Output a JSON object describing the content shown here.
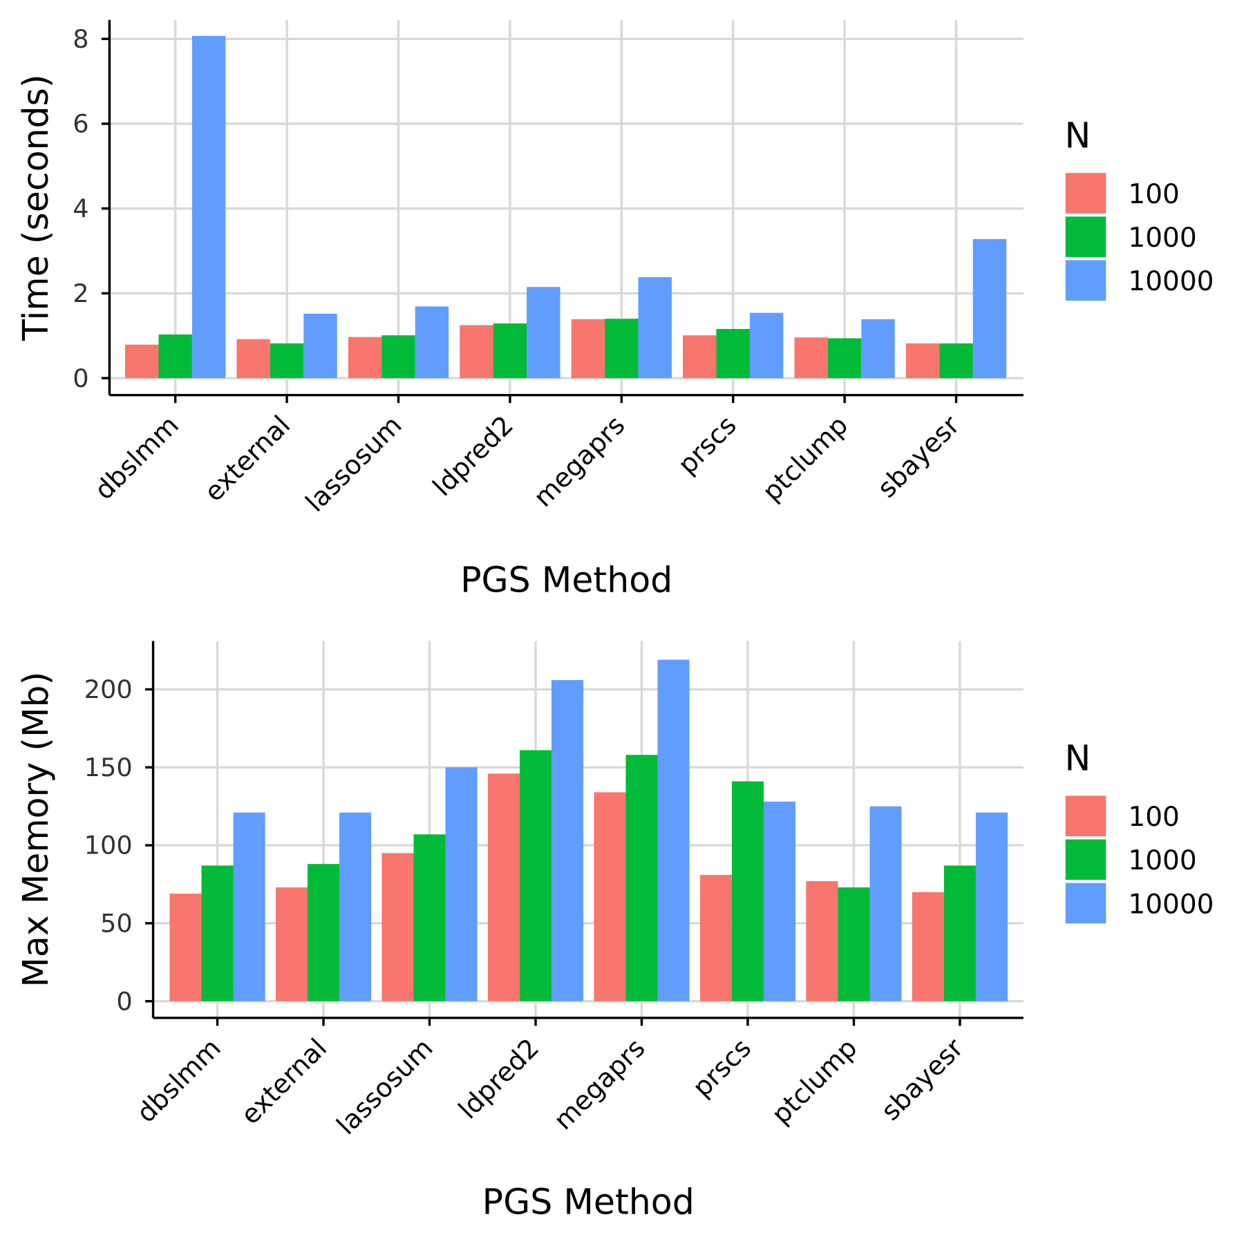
{
  "chart_data": [
    {
      "type": "bar",
      "categories": [
        "dbslmm",
        "external",
        "lassosum",
        "ldpred2",
        "megaprs",
        "prscs",
        "ptclump",
        "sbayesr"
      ],
      "series": [
        {
          "name": "100",
          "values": [
            0.79,
            0.92,
            0.97,
            1.25,
            1.39,
            1.01,
            0.96,
            0.82
          ]
        },
        {
          "name": "1000",
          "values": [
            1.03,
            0.82,
            1.01,
            1.29,
            1.4,
            1.16,
            0.94,
            0.82
          ]
        },
        {
          "name": "10000",
          "values": [
            8.07,
            1.52,
            1.69,
            2.15,
            2.38,
            1.54,
            1.39,
            3.28
          ]
        }
      ],
      "xlabel": "PGS Method",
      "ylabel": "Time (seconds)",
      "yticks": [
        0,
        2,
        4,
        6,
        8
      ],
      "ylim": [
        -0.4,
        8.45
      ],
      "grid": true,
      "legend_title": "N",
      "legend_position": "right"
    },
    {
      "type": "bar",
      "categories": [
        "dbslmm",
        "external",
        "lassosum",
        "ldpred2",
        "megaprs",
        "prscs",
        "ptclump",
        "sbayesr"
      ],
      "series": [
        {
          "name": "100",
          "values": [
            69,
            73,
            95,
            146,
            134,
            81,
            77,
            70
          ]
        },
        {
          "name": "1000",
          "values": [
            87,
            88,
            107,
            161,
            158,
            141,
            73,
            87
          ]
        },
        {
          "name": "10000",
          "values": [
            121,
            121,
            150,
            206,
            219,
            128,
            125,
            121
          ]
        }
      ],
      "xlabel": "PGS Method",
      "ylabel": "Max Memory (Mb)",
      "yticks": [
        0,
        50,
        100,
        150,
        200
      ],
      "ylim": [
        -10.7,
        231
      ],
      "grid": true,
      "legend_title": "N",
      "legend_position": "right"
    }
  ],
  "colors": [
    "#F8766D",
    "#00BA38",
    "#619CFF"
  ]
}
